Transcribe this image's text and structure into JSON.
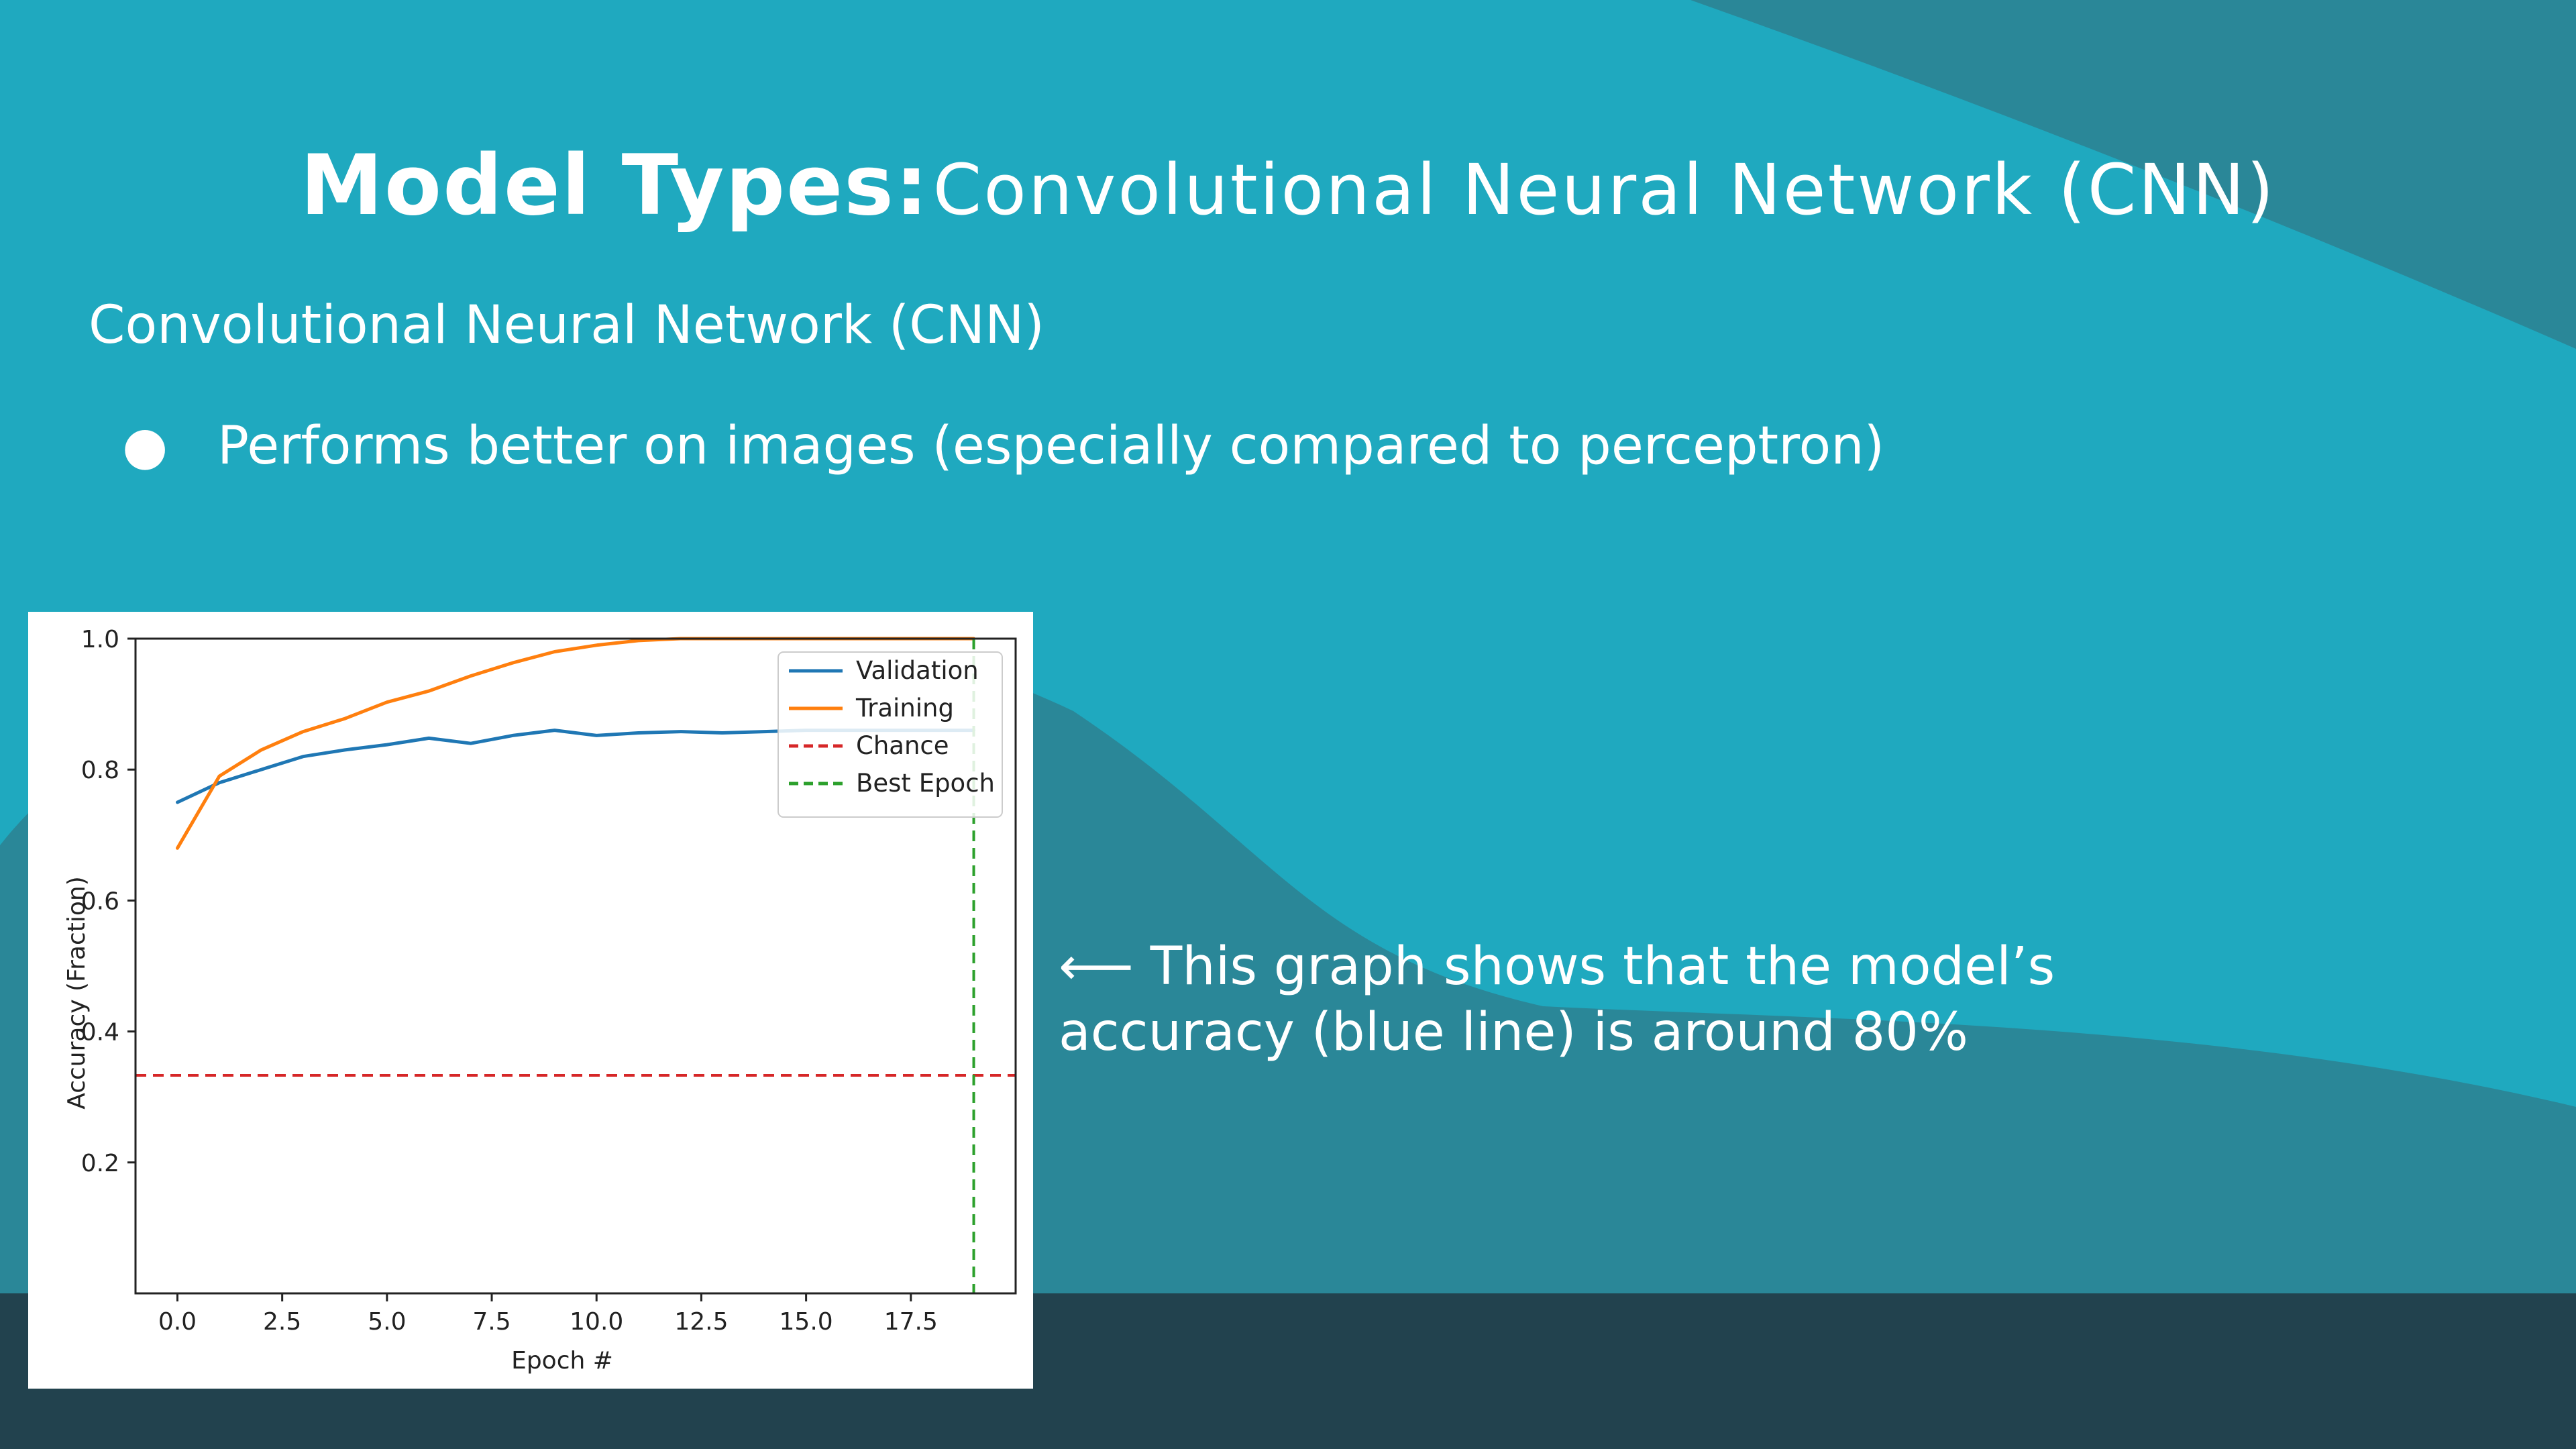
{
  "slide": {
    "title_bold": "Model Types:",
    "title_rest": "Convolutional Neural Network (CNN)",
    "subtitle": "Convolutional Neural Network (CNN)",
    "bullets": [
      {
        "marker": "●",
        "text": "Performs better on images (especially compared to perceptron)"
      }
    ],
    "note_line1": "⟵ This graph shows that the model’s",
    "note_line2": "accuracy (blue line) is around 80%",
    "colors": {
      "background": "#1fa9bf",
      "wave_dark": "#2a8798",
      "footer": "#22424e",
      "text": "#ffffff"
    }
  },
  "chart_data": {
    "type": "line",
    "title": "",
    "xlabel": "Epoch #",
    "ylabel": "Accuracy (Fraction)",
    "xlim": [
      -1,
      20.0
    ],
    "ylim": [
      0.0,
      1.0
    ],
    "xticks": [
      0.0,
      2.5,
      5.0,
      7.5,
      10.0,
      12.5,
      15.0,
      17.5
    ],
    "xtick_labels": [
      "0.0",
      "2.5",
      "5.0",
      "7.5",
      "10.0",
      "12.5",
      "15.0",
      "17.5"
    ],
    "yticks": [
      0.2,
      0.4,
      0.6,
      0.8,
      1.0
    ],
    "ytick_labels": [
      "0.2",
      "0.4",
      "0.6",
      "0.8",
      "1.0"
    ],
    "grid": false,
    "legend": "top-right",
    "series": [
      {
        "name": "Validation",
        "color": "#1f77b4",
        "style": "solid",
        "x": [
          0,
          1,
          2,
          3,
          4,
          5,
          6,
          7,
          8,
          9,
          10,
          11,
          12,
          13,
          14,
          15,
          16,
          17,
          18,
          19
        ],
        "y": [
          0.75,
          0.78,
          0.8,
          0.82,
          0.83,
          0.838,
          0.848,
          0.84,
          0.852,
          0.86,
          0.852,
          0.856,
          0.858,
          0.856,
          0.858,
          0.86,
          0.86,
          0.86,
          0.86,
          0.86
        ]
      },
      {
        "name": "Training",
        "color": "#ff7f0e",
        "style": "solid",
        "x": [
          0,
          1,
          2,
          3,
          4,
          5,
          6,
          7,
          8,
          9,
          10,
          11,
          12,
          13,
          14,
          15,
          16,
          17,
          18,
          19
        ],
        "y": [
          0.68,
          0.79,
          0.83,
          0.858,
          0.878,
          0.903,
          0.92,
          0.943,
          0.963,
          0.98,
          0.99,
          0.997,
          1.0,
          1.0,
          1.0,
          1.0,
          1.0,
          1.0,
          1.0,
          1.0
        ]
      },
      {
        "name": "Chance",
        "color": "#d62728",
        "style": "dashed",
        "orientation": "horizontal",
        "y": 0.333
      },
      {
        "name": "Best Epoch",
        "color": "#2ca02c",
        "style": "dashed",
        "orientation": "vertical",
        "x": 19
      }
    ]
  }
}
